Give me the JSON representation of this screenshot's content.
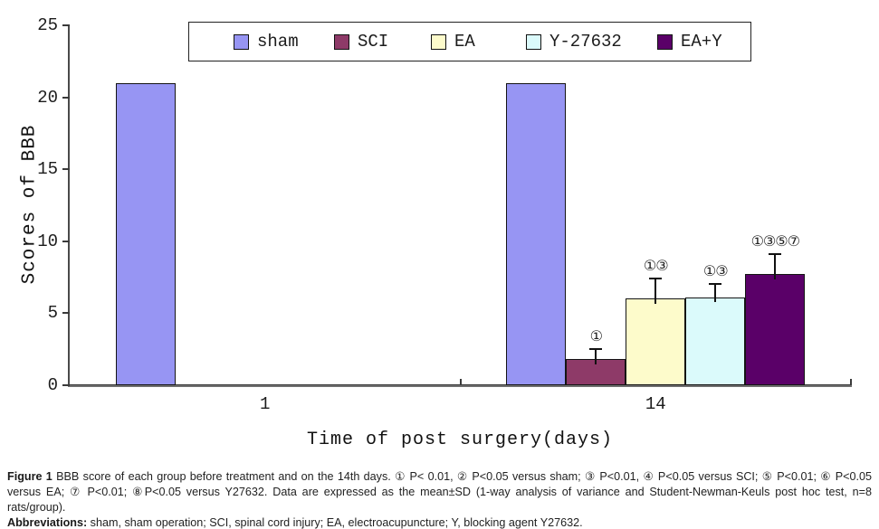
{
  "chart_data": {
    "type": "bar",
    "title": "",
    "xlabel": "Time of post surgery(days)",
    "ylabel": "Scores of BBB",
    "categories": [
      "1",
      "14"
    ],
    "ylim": [
      0,
      25
    ],
    "yticks": [
      0,
      5,
      10,
      15,
      20,
      25
    ],
    "grid": false,
    "legend_position": "top",
    "series": [
      {
        "name": "sham",
        "color": "#9795f3",
        "values": [
          21,
          21
        ],
        "errors": [
          0,
          0
        ],
        "annotations": [
          "",
          ""
        ]
      },
      {
        "name": "SCI",
        "color": "#8e3a68",
        "values": [
          0,
          1.8
        ],
        "errors": [
          0,
          0.7
        ],
        "annotations": [
          "",
          "①"
        ]
      },
      {
        "name": "EA",
        "color": "#fdfbcb",
        "values": [
          0,
          6.0
        ],
        "errors": [
          0,
          1.4
        ],
        "annotations": [
          "",
          "①③"
        ]
      },
      {
        "name": "Y-27632",
        "color": "#dbfafb",
        "values": [
          0,
          6.1
        ],
        "errors": [
          0,
          0.9
        ],
        "annotations": [
          "",
          "①③"
        ]
      },
      {
        "name": "EA+Y",
        "color": "#5a0068",
        "values": [
          0,
          7.7
        ],
        "errors": [
          0,
          1.4
        ],
        "annotations": [
          "",
          "①③⑤⑦"
        ]
      }
    ]
  },
  "caption": {
    "figure_label": "Figure 1",
    "figure_text": " BBB score of each group before treatment and on the 14th days. ① P< 0.01, ② P<0.05 versus sham; ③ P<0.01, ④ P<0.05 versus SCI; ⑤ P<0.01; ⑥ P<0.05 versus EA; ⑦ P<0.01; ⑧P<0.05 versus Y27632. Data are expressed as the mean±SD (1-way analysis of variance and Student-Newman-Keuls post hoc test, n=8 rats/group).",
    "abbr_label": "Abbreviations:",
    "abbr_text": " sham, sham operation; SCI, spinal cord injury; EA, electroacupuncture; Y, blocking agent Y27632."
  }
}
